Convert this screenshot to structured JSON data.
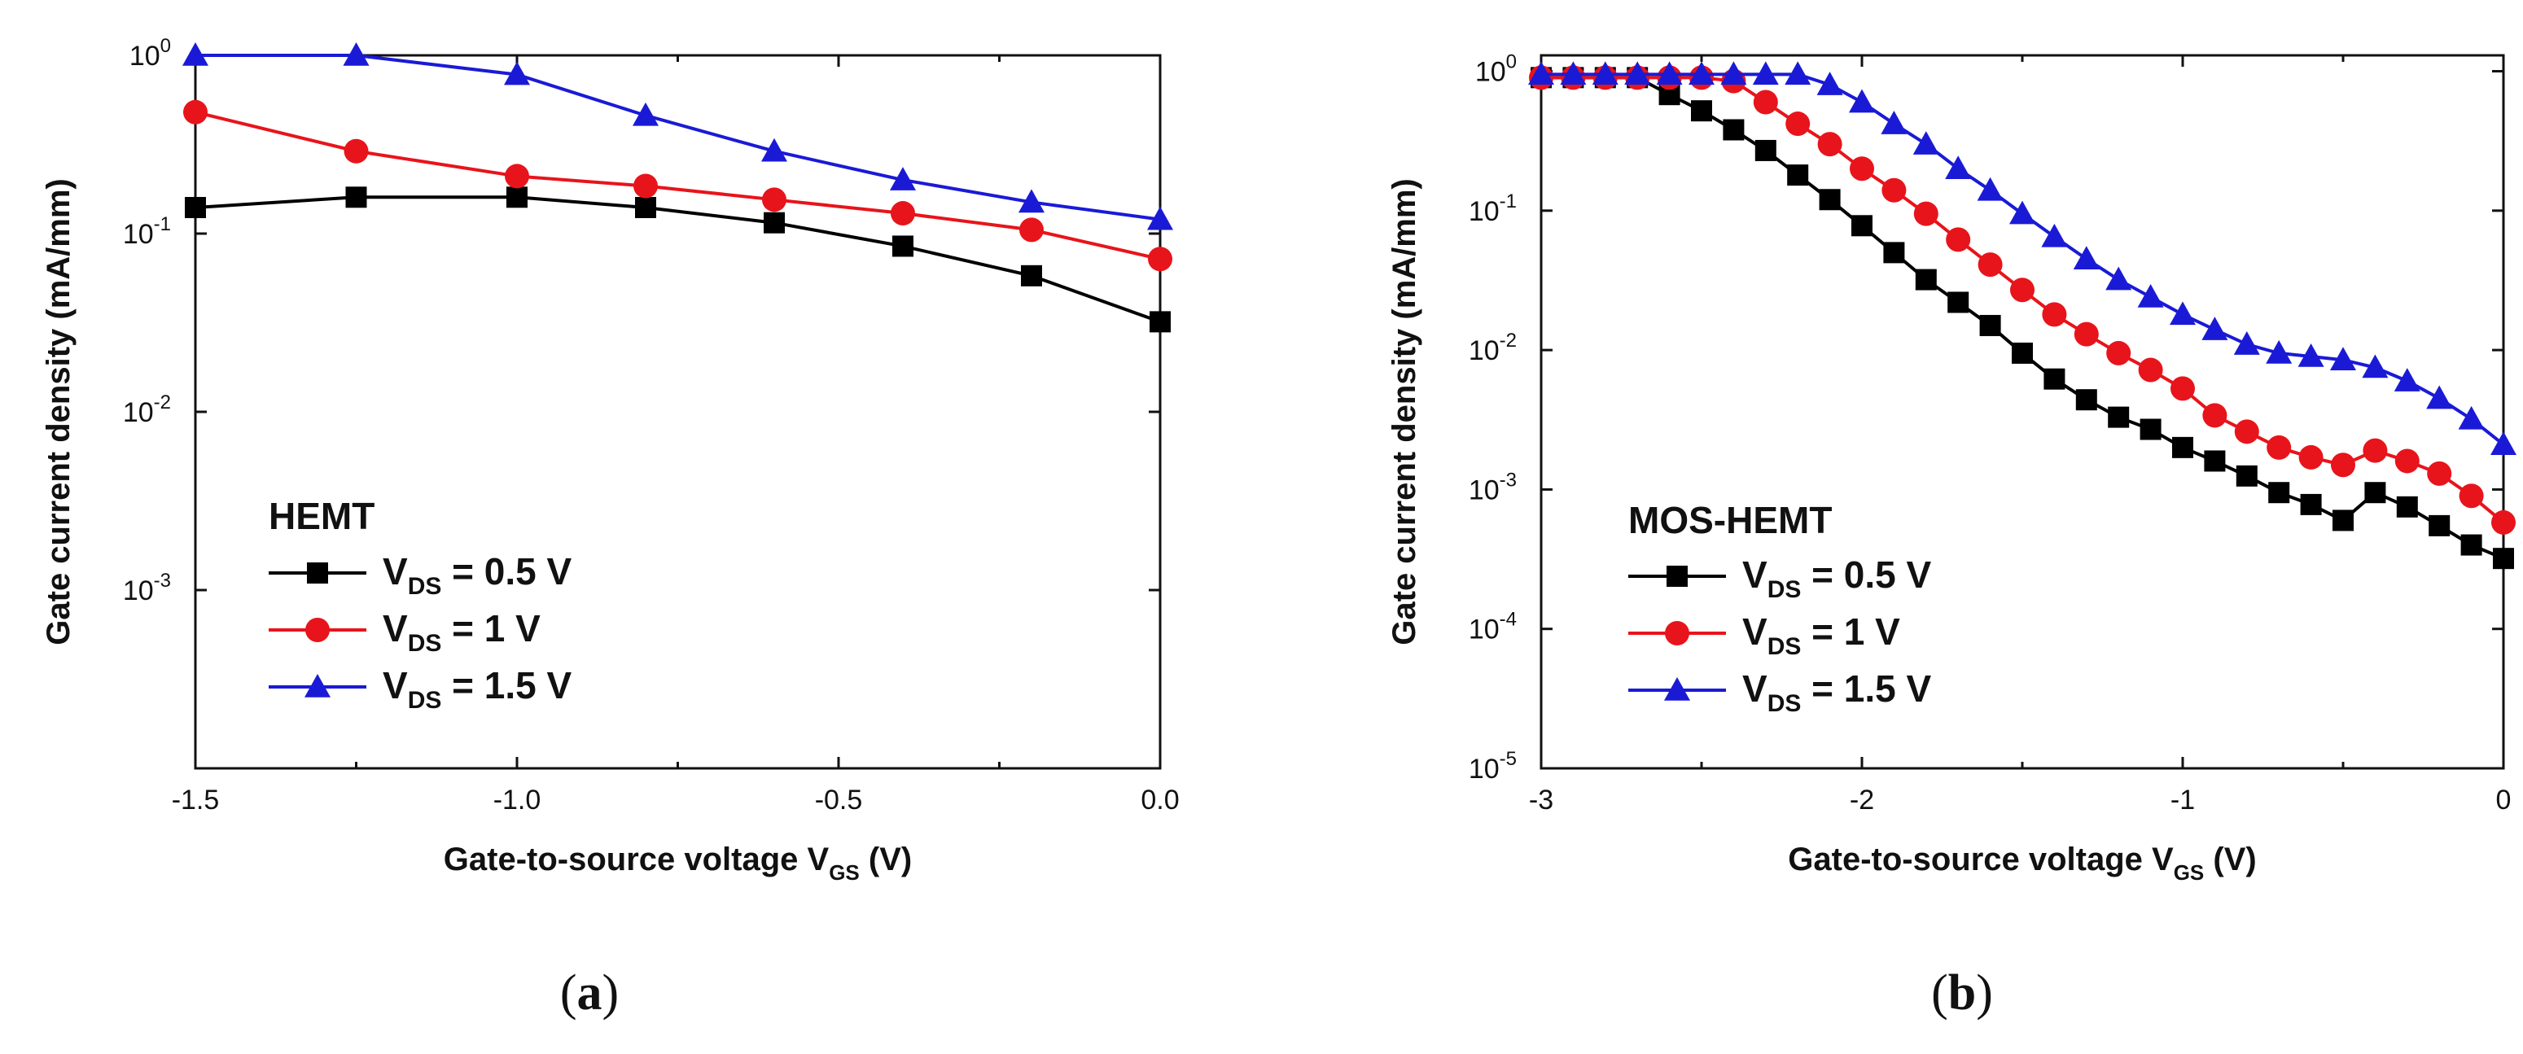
{
  "chart_data": [
    {
      "type": "line",
      "panel_label": "(a)",
      "caption_open": "(",
      "caption_letter": "a",
      "caption_close": ")",
      "xlabel": "Gate-to-source voltage V",
      "xlabel_sub": "GS",
      "xlabel_unit": " (V)",
      "ylabel": "Gate current density (mA/mm)",
      "y_scale": "log",
      "xlim": [
        -1.5,
        0.0
      ],
      "ylim": [
        0.0001,
        1
      ],
      "x_ticks": [
        -1.5,
        -1.0,
        -0.5,
        0.0
      ],
      "x_tick_labels": [
        "-1.5",
        "-1.0",
        "-0.5",
        "0.0"
      ],
      "y_ticks": [
        1,
        0.1,
        0.01,
        0.001
      ],
      "y_tick_labels": [
        {
          "base": "10",
          "exp": "0"
        },
        {
          "base": "10",
          "exp": "-1"
        },
        {
          "base": "10",
          "exp": "-2"
        },
        {
          "base": "10",
          "exp": "-3"
        }
      ],
      "legend_title": "HEMT",
      "legend_position": "lower-left",
      "series": [
        {
          "name_main": "V",
          "name_sub": "DS",
          "name_rest": " = 0.5 V",
          "color": "#000000",
          "marker": "square",
          "x": [
            -1.5,
            -1.25,
            -1.0,
            -0.8,
            -0.6,
            -0.4,
            -0.2,
            0.0
          ],
          "y": [
            0.14,
            0.16,
            0.16,
            0.14,
            0.115,
            0.085,
            0.058,
            0.032
          ]
        },
        {
          "name_main": "V",
          "name_sub": "DS",
          "name_rest": " = 1 V",
          "color": "#e8141b",
          "marker": "circle",
          "x": [
            -1.5,
            -1.25,
            -1.0,
            -0.8,
            -0.6,
            -0.4,
            -0.2,
            0.0
          ],
          "y": [
            0.48,
            0.29,
            0.21,
            0.185,
            0.155,
            0.13,
            0.105,
            0.072
          ]
        },
        {
          "name_main": "V",
          "name_sub": "DS",
          "name_rest": " = 1.5 V",
          "color": "#1a1ad6",
          "marker": "triangle",
          "x": [
            -1.5,
            -1.25,
            -1.0,
            -0.8,
            -0.6,
            -0.4,
            -0.2,
            0.0
          ],
          "y": [
            1.0,
            1.0,
            0.78,
            0.46,
            0.29,
            0.2,
            0.15,
            0.12
          ]
        }
      ]
    },
    {
      "type": "line",
      "panel_label": "(b)",
      "caption_open": "(",
      "caption_letter": "b",
      "caption_close": ")",
      "xlabel": "Gate-to-source voltage V",
      "xlabel_sub": "GS",
      "xlabel_unit": " (V)",
      "ylabel": "Gate current density (mA/mm)",
      "y_scale": "log",
      "xlim": [
        -3,
        0
      ],
      "ylim": [
        1e-05,
        1.3
      ],
      "x_ticks": [
        -3,
        -2,
        -1,
        0
      ],
      "x_tick_labels": [
        "-3",
        "-2",
        "-1",
        "0"
      ],
      "y_ticks": [
        1,
        0.1,
        0.01,
        0.001,
        0.0001,
        1e-05
      ],
      "y_tick_labels": [
        {
          "base": "10",
          "exp": "0"
        },
        {
          "base": "10",
          "exp": "-1"
        },
        {
          "base": "10",
          "exp": "-2"
        },
        {
          "base": "10",
          "exp": "-3"
        },
        {
          "base": "10",
          "exp": "-4"
        },
        {
          "base": "10",
          "exp": "-5"
        }
      ],
      "legend_title": "MOS-HEMT",
      "legend_position": "lower-left",
      "series": [
        {
          "name_main": "V",
          "name_sub": "DS",
          "name_rest": " = 0.5 V",
          "color": "#000000",
          "marker": "square",
          "x": [
            -3.0,
            -2.9,
            -2.8,
            -2.7,
            -2.6,
            -2.5,
            -2.4,
            -2.3,
            -2.2,
            -2.1,
            -2.0,
            -1.9,
            -1.8,
            -1.7,
            -1.6,
            -1.5,
            -1.4,
            -1.3,
            -1.2,
            -1.1,
            -1.0,
            -0.9,
            -0.8,
            -0.7,
            -0.6,
            -0.5,
            -0.4,
            -0.3,
            -0.2,
            -0.1,
            0.0
          ],
          "y": [
            0.9,
            0.9,
            0.9,
            0.9,
            0.68,
            0.52,
            0.38,
            0.27,
            0.18,
            0.12,
            0.078,
            0.05,
            0.032,
            0.022,
            0.015,
            0.0095,
            0.0062,
            0.0044,
            0.0033,
            0.0027,
            0.002,
            0.0016,
            0.00125,
            0.00095,
            0.00078,
            0.0006,
            0.00095,
            0.00075,
            0.00055,
            0.0004,
            0.00032
          ]
        },
        {
          "name_main": "V",
          "name_sub": "DS",
          "name_rest": " = 1 V",
          "color": "#e8141b",
          "marker": "circle",
          "x": [
            -3.0,
            -2.9,
            -2.8,
            -2.7,
            -2.6,
            -2.5,
            -2.4,
            -2.3,
            -2.2,
            -2.1,
            -2.0,
            -1.9,
            -1.8,
            -1.7,
            -1.6,
            -1.5,
            -1.4,
            -1.3,
            -1.2,
            -1.1,
            -1.0,
            -0.9,
            -0.8,
            -0.7,
            -0.6,
            -0.5,
            -0.4,
            -0.3,
            -0.2,
            -0.1,
            0.0
          ],
          "y": [
            0.9,
            0.9,
            0.9,
            0.9,
            0.9,
            0.9,
            0.85,
            0.6,
            0.42,
            0.3,
            0.2,
            0.14,
            0.095,
            0.062,
            0.041,
            0.027,
            0.018,
            0.013,
            0.0095,
            0.0072,
            0.0053,
            0.0034,
            0.0026,
            0.002,
            0.0017,
            0.0015,
            0.0019,
            0.0016,
            0.0013,
            0.0009,
            0.00058
          ]
        },
        {
          "name_main": "V",
          "name_sub": "DS",
          "name_rest": " = 1.5 V",
          "color": "#1a1ad6",
          "marker": "triangle",
          "x": [
            -3.0,
            -2.9,
            -2.8,
            -2.7,
            -2.6,
            -2.5,
            -2.4,
            -2.3,
            -2.2,
            -2.1,
            -2.0,
            -1.9,
            -1.8,
            -1.7,
            -1.6,
            -1.5,
            -1.4,
            -1.3,
            -1.2,
            -1.1,
            -1.0,
            -0.9,
            -0.8,
            -0.7,
            -0.6,
            -0.5,
            -0.4,
            -0.3,
            -0.2,
            -0.1,
            0.0
          ],
          "y": [
            0.95,
            0.95,
            0.95,
            0.95,
            0.95,
            0.95,
            0.95,
            0.95,
            0.95,
            0.8,
            0.6,
            0.42,
            0.3,
            0.2,
            0.14,
            0.095,
            0.065,
            0.045,
            0.032,
            0.024,
            0.018,
            0.014,
            0.011,
            0.0095,
            0.009,
            0.0085,
            0.0075,
            0.006,
            0.0045,
            0.0032,
            0.0021
          ]
        }
      ]
    }
  ]
}
